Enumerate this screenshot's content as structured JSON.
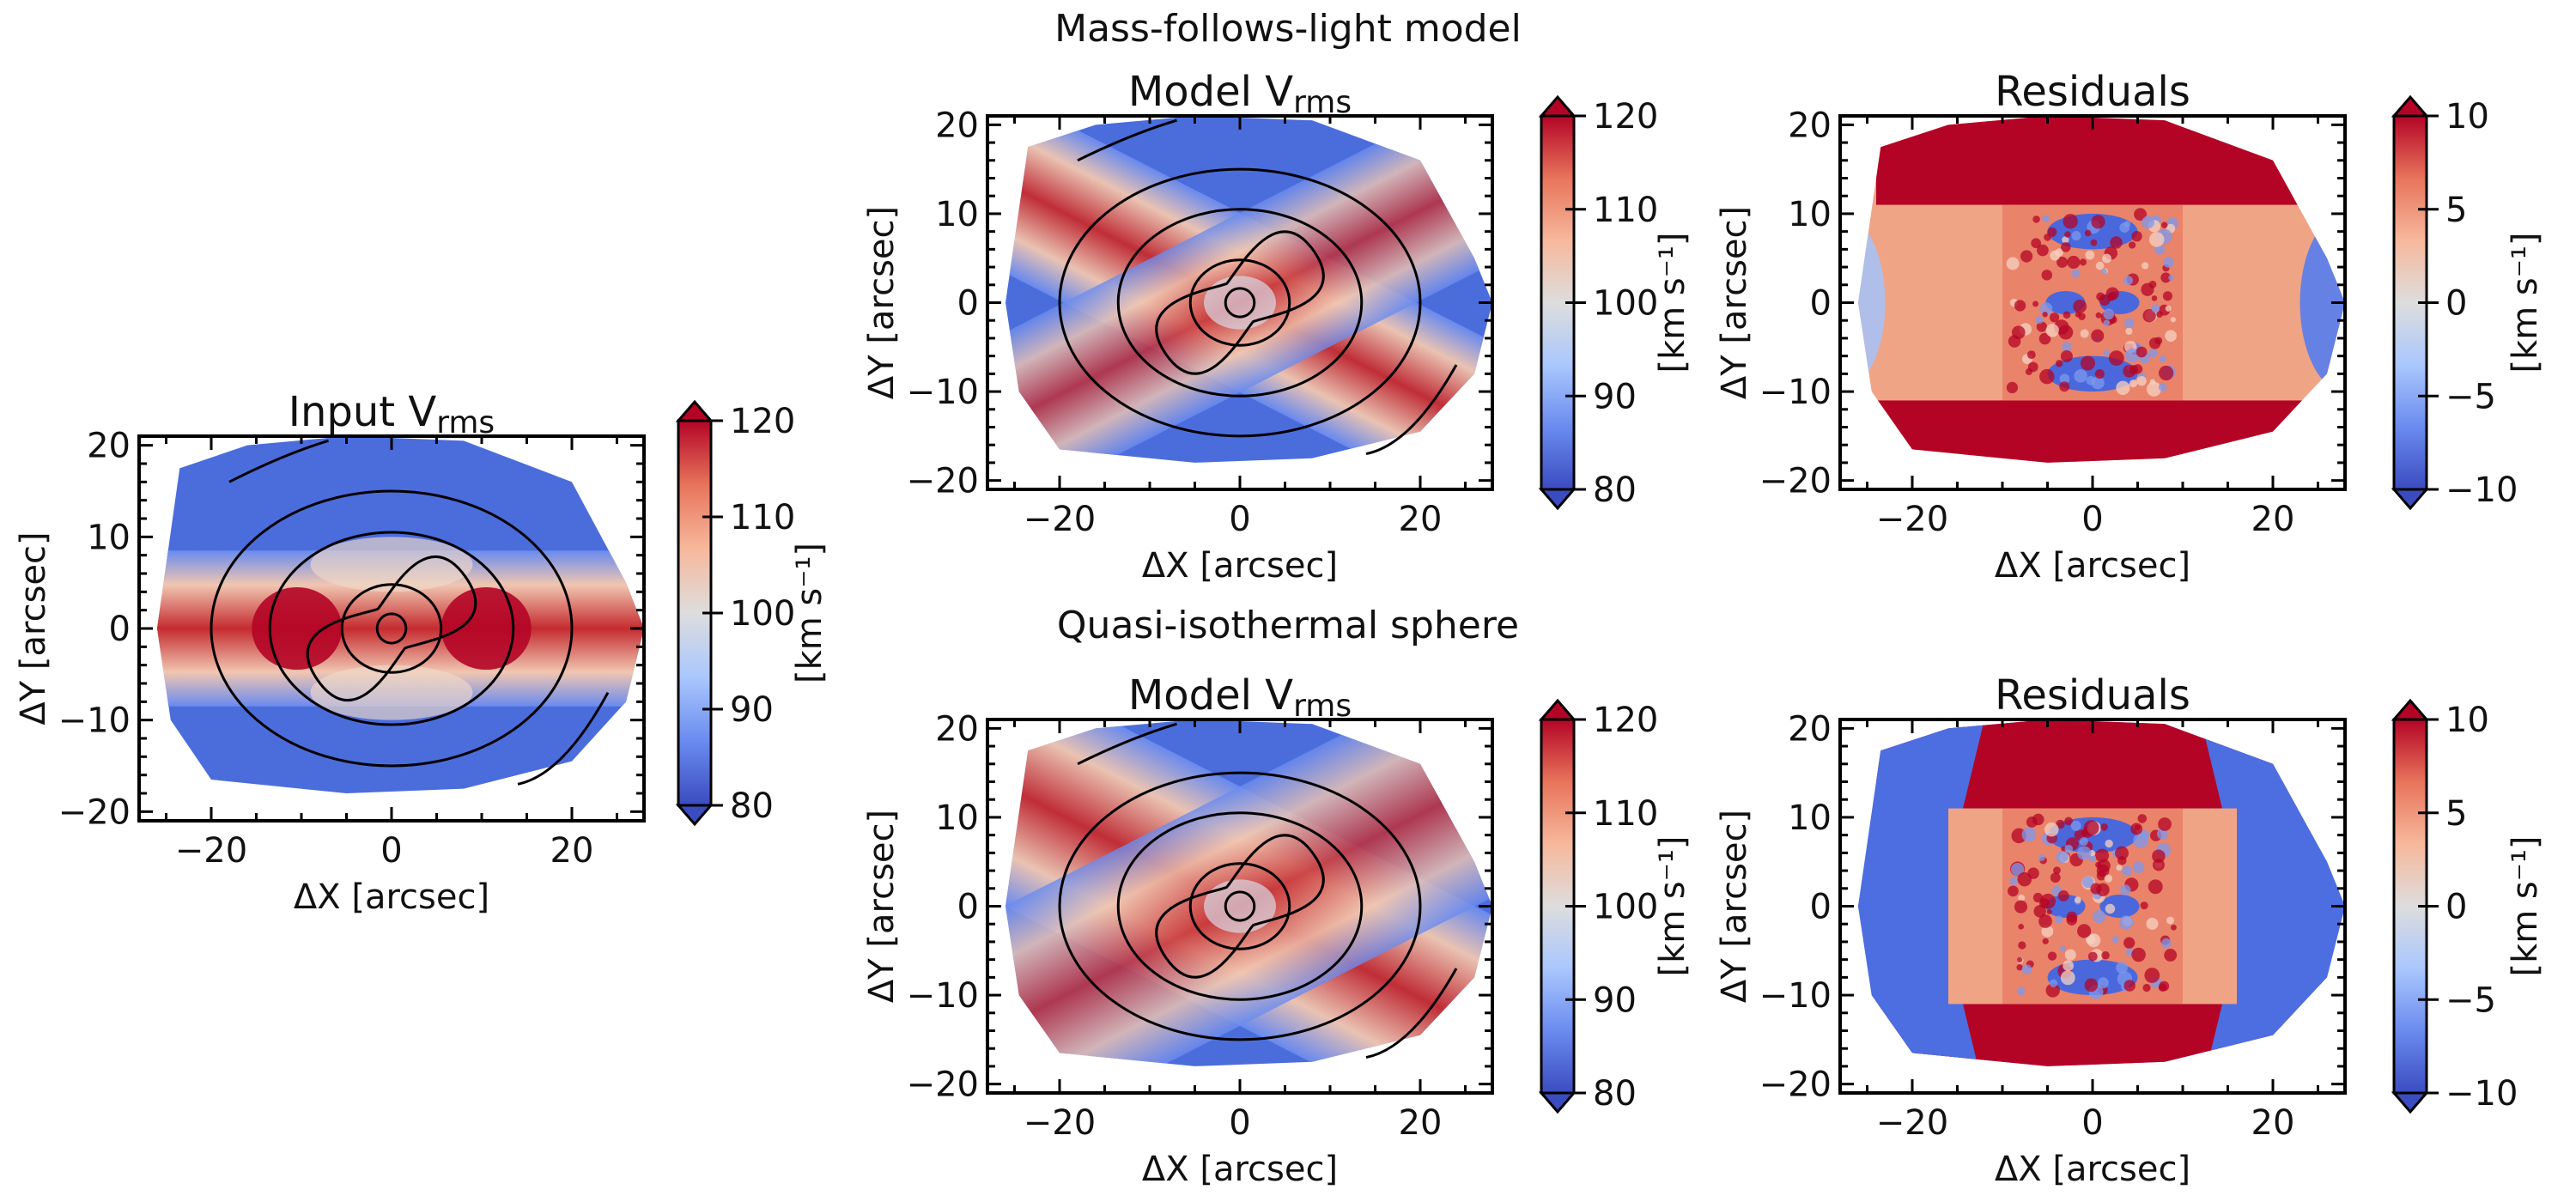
{
  "figure": {
    "row_titles": [
      "Mass-follows-light model",
      "Quasi-isothermal sphere"
    ],
    "x_label": "ΔX [arcsec]",
    "y_label": "ΔY [arcsec]",
    "colorbar_unit": "[km s⁻¹]",
    "colormap": "coolwarm",
    "colormap_stops": [
      "#3b4cc0",
      "#6a8bef",
      "#aac7fd",
      "#dddddd",
      "#f7b89c",
      "#e7745b",
      "#b40426"
    ]
  },
  "chart_data": [
    {
      "id": "input",
      "type": "heatmap",
      "title": "Input V",
      "title_sub": "rms",
      "xlabel": "ΔX [arcsec]",
      "ylabel": "ΔY [arcsec]",
      "xlim": [
        -28,
        28
      ],
      "ylim": [
        -21,
        21
      ],
      "xticks": [
        -20,
        0,
        20
      ],
      "yticks": [
        -20,
        -10,
        0,
        10,
        20
      ],
      "clim": [
        80,
        120
      ],
      "cticks": [
        80,
        90,
        100,
        110,
        120
      ],
      "colorbar_label": "[km s⁻¹]",
      "pattern": "observed_vrms",
      "contours": true
    },
    {
      "id": "mfl-model",
      "type": "heatmap",
      "title": "Model V",
      "title_sub": "rms",
      "xlabel": "ΔX [arcsec]",
      "ylabel": "ΔY [arcsec]",
      "xlim": [
        -28,
        28
      ],
      "ylim": [
        -21,
        21
      ],
      "xticks": [
        -20,
        0,
        20
      ],
      "yticks": [
        -20,
        -10,
        0,
        10,
        20
      ],
      "clim": [
        80,
        120
      ],
      "cticks": [
        80,
        90,
        100,
        110,
        120
      ],
      "colorbar_label": "[km s⁻¹]",
      "pattern": "model_vrms_narrow",
      "contours": true
    },
    {
      "id": "mfl-resid",
      "type": "heatmap",
      "title": "Residuals",
      "title_sub": "",
      "xlabel": "ΔX [arcsec]",
      "ylabel": "ΔY [arcsec]",
      "xlim": [
        -28,
        28
      ],
      "ylim": [
        -21,
        21
      ],
      "xticks": [
        -20,
        0,
        20
      ],
      "yticks": [
        -20,
        -10,
        0,
        10,
        20
      ],
      "clim": [
        -10,
        10
      ],
      "cticks": [
        -10,
        -5,
        0,
        5,
        10
      ],
      "colorbar_label": "[km s⁻¹]",
      "pattern": "residual_mfl",
      "contours": false
    },
    {
      "id": "qis-model",
      "type": "heatmap",
      "title": "Model V",
      "title_sub": "rms",
      "xlabel": "ΔX [arcsec]",
      "ylabel": "ΔY [arcsec]",
      "xlim": [
        -28,
        28
      ],
      "ylim": [
        -21,
        21
      ],
      "xticks": [
        -20,
        0,
        20
      ],
      "yticks": [
        -20,
        -10,
        0,
        10,
        20
      ],
      "clim": [
        80,
        120
      ],
      "cticks": [
        80,
        90,
        100,
        110,
        120
      ],
      "colorbar_label": "[km s⁻¹]",
      "pattern": "model_vrms_wide",
      "contours": true
    },
    {
      "id": "qis-resid",
      "type": "heatmap",
      "title": "Residuals",
      "title_sub": "",
      "xlabel": "ΔX [arcsec]",
      "ylabel": "ΔY [arcsec]",
      "xlim": [
        -28,
        28
      ],
      "ylim": [
        -21,
        21
      ],
      "xticks": [
        -20,
        0,
        20
      ],
      "yticks": [
        -20,
        -10,
        0,
        10,
        20
      ],
      "clim": [
        -10,
        10
      ],
      "cticks": [
        -10,
        -5,
        0,
        5,
        10
      ],
      "colorbar_label": "[km s⁻¹]",
      "pattern": "residual_qis",
      "contours": false
    }
  ]
}
